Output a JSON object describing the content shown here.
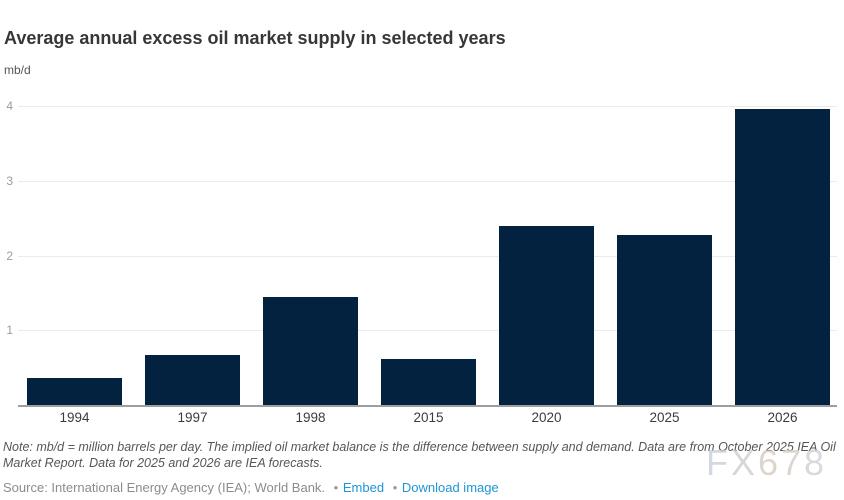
{
  "header": {
    "title": "Average annual excess oil market supply in selected years",
    "subtitle": "mb/d"
  },
  "chart_data": {
    "type": "bar",
    "categories": [
      "1994",
      "1997",
      "1998",
      "2015",
      "2020",
      "2025",
      "2026"
    ],
    "values": [
      0.36,
      0.67,
      1.44,
      0.62,
      2.4,
      2.27,
      3.96
    ],
    "title": "Average annual excess oil market supply in selected years",
    "xlabel": "",
    "ylabel": "mb/d",
    "ylim": [
      0,
      4
    ],
    "yticks": [
      1,
      2,
      3,
      4
    ],
    "grid": true,
    "legend": "none",
    "bar_color": "#03223f"
  },
  "colors": {
    "bar": "#03223f",
    "gridline": "#ebebeb",
    "axis_line": "#9e9e9e",
    "link": "#1d96d6",
    "title_text": "#373737",
    "note_text": "#565656",
    "source_text": "#8c8c8c"
  },
  "footer": {
    "note": "Note: mb/d = million barrels per day. The implied oil market balance is the difference between supply and demand. Data are from October 2025 IEA Oil Market Report. Data for 2025 and 2026 are IEA forecasts.",
    "source": "Source: International Energy Agency (IEA); World Bank.",
    "bullet": "•",
    "embed_label": "Embed",
    "download_label": "Download image"
  },
  "watermark": "FX678"
}
